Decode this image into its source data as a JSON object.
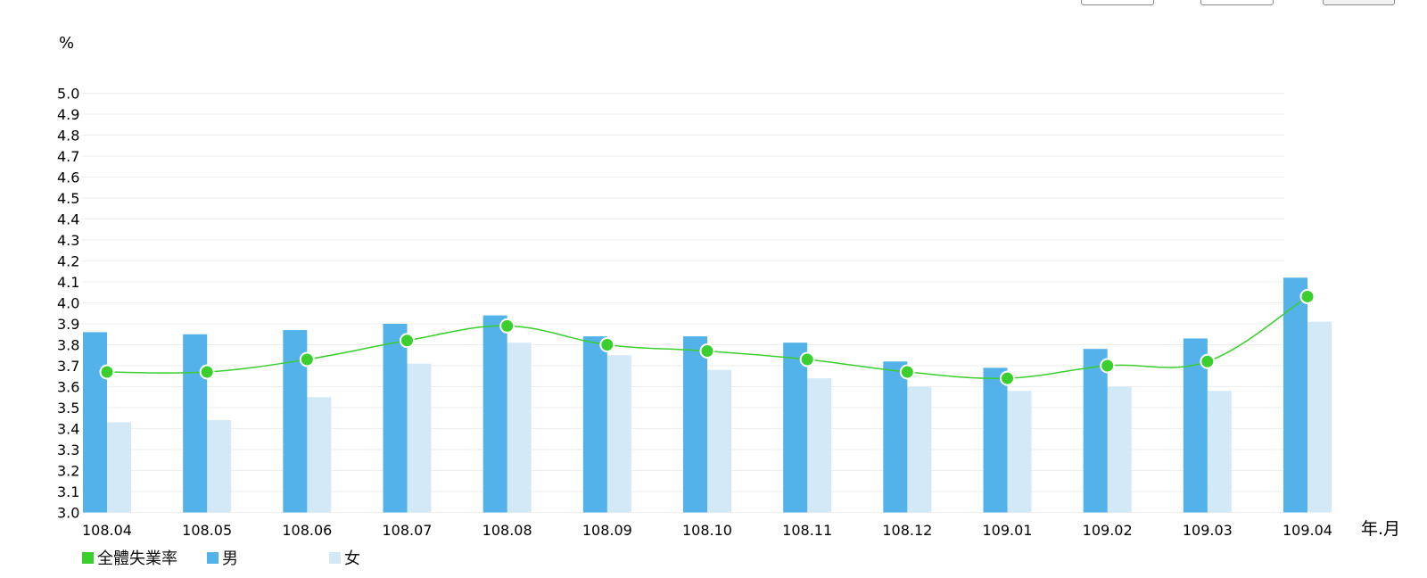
{
  "colors": {
    "male": "#52b2e9",
    "female": "#d3e9f8",
    "overall": "#3acf2c",
    "grid": "#eeeeee"
  },
  "chart_data": {
    "type": "bar",
    "ylabel": "%",
    "xlabel": "年.月",
    "ylim": [
      3.0,
      5.0
    ],
    "yticks": [
      "3.0",
      "3.1",
      "3.2",
      "3.3",
      "3.4",
      "3.5",
      "3.6",
      "3.7",
      "3.8",
      "3.9",
      "4.0",
      "4.1",
      "4.2",
      "4.3",
      "4.4",
      "4.5",
      "4.6",
      "4.7",
      "4.8",
      "4.9",
      "5.0"
    ],
    "categories": [
      "108.04",
      "108.05",
      "108.06",
      "108.07",
      "108.08",
      "108.09",
      "108.10",
      "108.11",
      "108.12",
      "109.01",
      "109.02",
      "109.03",
      "109.04"
    ],
    "grid": true,
    "legend_position": "bottom-left",
    "series": [
      {
        "name": "全體失業率",
        "type": "line",
        "values": [
          3.67,
          3.67,
          3.73,
          3.82,
          3.89,
          3.8,
          3.77,
          3.73,
          3.67,
          3.64,
          3.7,
          3.72,
          4.03
        ]
      },
      {
        "name": "男",
        "type": "bar",
        "values": [
          3.86,
          3.85,
          3.87,
          3.9,
          3.94,
          3.84,
          3.84,
          3.81,
          3.72,
          3.69,
          3.78,
          3.83,
          4.12
        ]
      },
      {
        "name": "女",
        "type": "bar",
        "values": [
          3.43,
          3.44,
          3.55,
          3.71,
          3.81,
          3.75,
          3.68,
          3.64,
          3.6,
          3.58,
          3.6,
          3.58,
          3.91
        ]
      }
    ]
  },
  "legend": {
    "overall_label": "全體失業率",
    "male_label": "男",
    "female_label": "女"
  }
}
